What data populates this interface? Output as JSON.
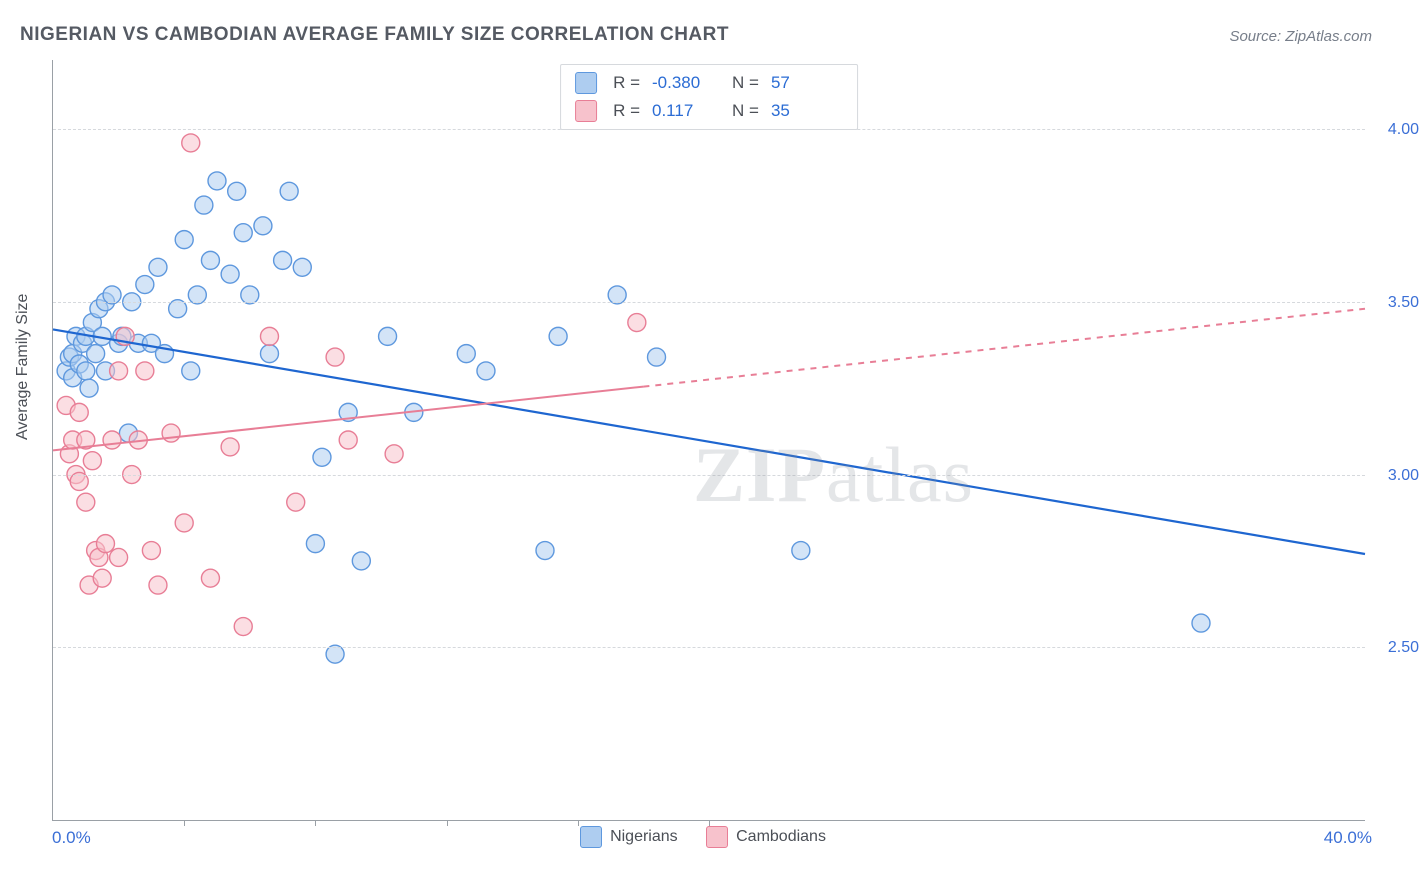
{
  "title": "NIGERIAN VS CAMBODIAN AVERAGE FAMILY SIZE CORRELATION CHART",
  "source_label": "Source: ZipAtlas.com",
  "y_axis_label": "Average Family Size",
  "watermark": "ZIPatlas",
  "chart": {
    "type": "scatter",
    "xlim": [
      0,
      40
    ],
    "ylim": [
      2.0,
      4.2
    ],
    "x_range_labels": {
      "min": "0.0%",
      "max": "40.0%"
    },
    "x_tick_positions": [
      4,
      8,
      12,
      16,
      20
    ],
    "y_gridlines": [
      2.5,
      3.0,
      3.5,
      4.0
    ],
    "y_tick_labels": [
      "2.50",
      "3.00",
      "3.50",
      "4.00"
    ],
    "background_color": "#ffffff",
    "grid_color": "#d6d9dd",
    "axis_color": "#9aa0a6",
    "series": [
      {
        "name": "Nigerians",
        "fill": "#aecdf0",
        "stroke": "#5e98de",
        "fill_opacity": 0.55,
        "points": [
          [
            0.4,
            3.3
          ],
          [
            0.5,
            3.34
          ],
          [
            0.6,
            3.28
          ],
          [
            0.6,
            3.35
          ],
          [
            0.7,
            3.4
          ],
          [
            0.8,
            3.32
          ],
          [
            0.9,
            3.38
          ],
          [
            1.0,
            3.3
          ],
          [
            1.0,
            3.4
          ],
          [
            1.1,
            3.25
          ],
          [
            1.2,
            3.44
          ],
          [
            1.3,
            3.35
          ],
          [
            1.4,
            3.48
          ],
          [
            1.5,
            3.4
          ],
          [
            1.6,
            3.5
          ],
          [
            1.6,
            3.3
          ],
          [
            1.8,
            3.52
          ],
          [
            2.0,
            3.38
          ],
          [
            2.1,
            3.4
          ],
          [
            2.3,
            3.12
          ],
          [
            2.4,
            3.5
          ],
          [
            2.6,
            3.38
          ],
          [
            2.8,
            3.55
          ],
          [
            3.0,
            3.38
          ],
          [
            3.2,
            3.6
          ],
          [
            3.4,
            3.35
          ],
          [
            3.8,
            3.48
          ],
          [
            4.0,
            3.68
          ],
          [
            4.2,
            3.3
          ],
          [
            4.4,
            3.52
          ],
          [
            4.6,
            3.78
          ],
          [
            4.8,
            3.62
          ],
          [
            5.0,
            3.85
          ],
          [
            5.4,
            3.58
          ],
          [
            5.6,
            3.82
          ],
          [
            5.8,
            3.7
          ],
          [
            6.0,
            3.52
          ],
          [
            6.4,
            3.72
          ],
          [
            6.6,
            3.35
          ],
          [
            7.0,
            3.62
          ],
          [
            7.2,
            3.82
          ],
          [
            7.6,
            3.6
          ],
          [
            8.0,
            2.8
          ],
          [
            8.2,
            3.05
          ],
          [
            8.6,
            2.48
          ],
          [
            9.0,
            3.18
          ],
          [
            9.4,
            2.75
          ],
          [
            10.2,
            3.4
          ],
          [
            11.0,
            3.18
          ],
          [
            12.6,
            3.35
          ],
          [
            13.2,
            3.3
          ],
          [
            15.0,
            2.78
          ],
          [
            15.4,
            3.4
          ],
          [
            17.2,
            3.52
          ],
          [
            18.4,
            3.34
          ],
          [
            22.8,
            2.78
          ],
          [
            35.0,
            2.57
          ]
        ],
        "trend": {
          "x1": 0,
          "y1": 3.42,
          "x2": 40,
          "y2": 2.77,
          "color": "#1e66d0",
          "width": 2.2
        },
        "r": "-0.380",
        "n": "57"
      },
      {
        "name": "Cambodians",
        "fill": "#f7c2cc",
        "stroke": "#e87e96",
        "fill_opacity": 0.55,
        "points": [
          [
            0.4,
            3.2
          ],
          [
            0.5,
            3.06
          ],
          [
            0.6,
            3.1
          ],
          [
            0.7,
            3.0
          ],
          [
            0.8,
            3.18
          ],
          [
            0.8,
            2.98
          ],
          [
            1.0,
            2.92
          ],
          [
            1.0,
            3.1
          ],
          [
            1.1,
            2.68
          ],
          [
            1.2,
            3.04
          ],
          [
            1.3,
            2.78
          ],
          [
            1.4,
            2.76
          ],
          [
            1.5,
            2.7
          ],
          [
            1.6,
            2.8
          ],
          [
            1.8,
            3.1
          ],
          [
            2.0,
            3.3
          ],
          [
            2.0,
            2.76
          ],
          [
            2.2,
            3.4
          ],
          [
            2.4,
            3.0
          ],
          [
            2.6,
            3.1
          ],
          [
            2.8,
            3.3
          ],
          [
            3.0,
            2.78
          ],
          [
            3.2,
            2.68
          ],
          [
            3.6,
            3.12
          ],
          [
            4.0,
            2.86
          ],
          [
            4.2,
            3.96
          ],
          [
            4.8,
            2.7
          ],
          [
            5.4,
            3.08
          ],
          [
            5.8,
            2.56
          ],
          [
            6.6,
            3.4
          ],
          [
            7.4,
            2.92
          ],
          [
            8.6,
            3.34
          ],
          [
            9.0,
            3.1
          ],
          [
            10.4,
            3.06
          ],
          [
            17.8,
            3.44
          ]
        ],
        "trend": {
          "x1": 0,
          "y1": 3.07,
          "x2": 40,
          "y2": 3.48,
          "color": "#e87e96",
          "width": 2,
          "dash_from_x": 18
        },
        "r": "0.117",
        "n": "35"
      }
    ],
    "marker_radius": 9
  },
  "bottom_legend": [
    {
      "label": "Nigerians",
      "fill": "#aecdf0",
      "stroke": "#5e98de"
    },
    {
      "label": "Cambodians",
      "fill": "#f7c2cc",
      "stroke": "#e87e96"
    }
  ],
  "top_legend": [
    {
      "swatch_fill": "#aecdf0",
      "swatch_stroke": "#5e98de",
      "r_label": "R =",
      "r": "-0.380",
      "n_label": "N =",
      "n": "57"
    },
    {
      "swatch_fill": "#f7c2cc",
      "swatch_stroke": "#e87e96",
      "r_label": "R =",
      "r": "0.117",
      "n_label": "N =",
      "n": "35"
    }
  ]
}
